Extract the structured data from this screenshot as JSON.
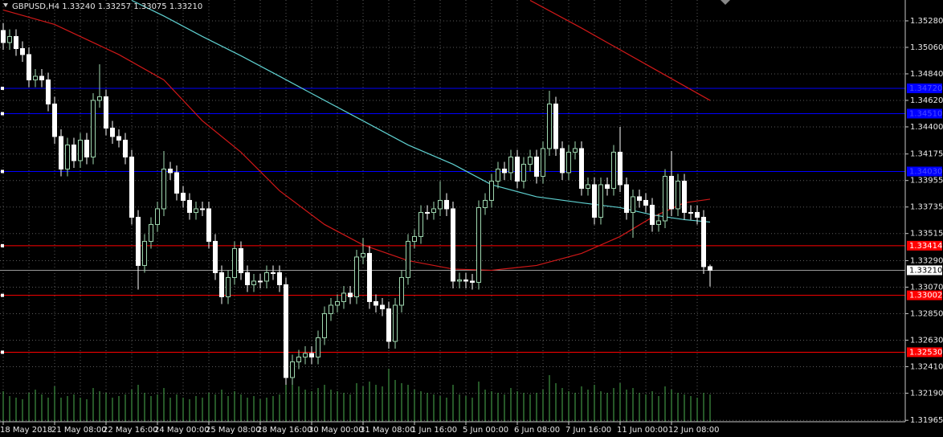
{
  "chart_data": {
    "type": "candlestick",
    "title": "GBPUSD,H4  1.33240 1.33257 1.33075 1.33210",
    "categories": [
      "18 May 2018",
      null,
      null,
      null,
      null,
      null,
      null,
      null,
      "21 May 08:00",
      null,
      null,
      null,
      null,
      null,
      null,
      null,
      "22 May 16:00",
      null,
      null,
      null,
      null,
      null,
      null,
      null,
      "24 May 00:00",
      null,
      null,
      null,
      null,
      null,
      null,
      null,
      "25 May 08:00",
      null,
      null,
      null,
      null,
      null,
      null,
      null,
      "28 May 16:00",
      null,
      null,
      null,
      null,
      null,
      null,
      null,
      "30 May 00:00",
      null,
      null,
      null,
      null,
      null,
      null,
      null,
      "31 May 08:00",
      null,
      null,
      null,
      null,
      null,
      null,
      null,
      "1 Jun 16:00",
      null,
      null,
      null,
      null,
      null,
      null,
      null,
      "5 Jun 00:00",
      null,
      null,
      null,
      null,
      null,
      null,
      null,
      "6 Jun 08:00",
      null,
      null,
      null,
      null,
      null,
      null,
      null,
      "7 Jun 16:00",
      null,
      null,
      null,
      null,
      null,
      null,
      null,
      "11 Jun 00:00",
      null,
      null,
      null,
      null,
      null,
      null,
      null,
      "12 Jun 08:00",
      null,
      null,
      null,
      null,
      null,
      null
    ],
    "open": [
      1.352,
      1.351,
      1.3515,
      1.3505,
      1.35,
      1.3479,
      1.3482,
      1.3479,
      1.3459,
      1.3432,
      1.3405,
      1.3425,
      1.3412,
      1.3429,
      1.3415,
      1.3462,
      1.3465,
      1.3439,
      1.3432,
      1.3429,
      1.3415,
      1.3365,
      1.3325,
      1.3345,
      1.3359,
      1.3372,
      1.3405,
      1.3402,
      1.3385,
      1.3379,
      1.3369,
      1.3372,
      1.3372,
      1.3345,
      1.3319,
      1.3299,
      1.3315,
      1.3339,
      1.3319,
      1.3309,
      1.3312,
      1.3312,
      1.3319,
      1.3319,
      1.3309,
      1.3232,
      1.3245,
      1.3249,
      1.3252,
      1.3249,
      1.3265,
      1.3285,
      1.3292,
      1.3295,
      1.3302,
      1.3299,
      1.3332,
      1.3335,
      1.3295,
      1.3292,
      1.3289,
      1.3262,
      1.3292,
      1.3315,
      1.3345,
      1.3349,
      1.3369,
      1.3369,
      1.3372,
      1.3379,
      1.3372,
      1.3312,
      1.3313,
      1.3312,
      1.3311,
      1.3373,
      1.3379,
      1.3395,
      1.3405,
      1.3402,
      1.3415,
      1.3395,
      1.3409,
      1.3415,
      1.3399,
      1.3422,
      1.3459,
      1.3422,
      1.3402,
      1.3419,
      1.3422,
      1.3389,
      1.3392,
      1.3365,
      1.3392,
      1.3389,
      1.3419,
      1.3392,
      1.3369,
      1.3382,
      1.3379,
      1.3375,
      1.3359,
      1.3362,
      1.3399,
      1.3372,
      1.3395,
      1.3369,
      1.3369,
      1.3365,
      1.3324
    ],
    "high": [
      1.3526,
      1.3521,
      1.3521,
      1.3511,
      1.3506,
      1.3488,
      1.3488,
      1.3485,
      1.3465,
      1.3438,
      1.3431,
      1.3431,
      1.3435,
      1.3435,
      1.3468,
      1.3492,
      1.3471,
      1.3445,
      1.3438,
      1.3435,
      1.3421,
      1.3371,
      1.3351,
      1.3365,
      1.3378,
      1.342,
      1.3411,
      1.3408,
      1.3391,
      1.3385,
      1.3378,
      1.3378,
      1.3378,
      1.3351,
      1.3325,
      1.3321,
      1.3345,
      1.3345,
      1.3325,
      1.3318,
      1.3318,
      1.3325,
      1.3325,
      1.3325,
      1.3315,
      1.3251,
      1.3255,
      1.3258,
      1.3258,
      1.3271,
      1.3291,
      1.3298,
      1.3301,
      1.3308,
      1.3308,
      1.3338,
      1.3348,
      1.3341,
      1.3301,
      1.3298,
      1.3295,
      1.3298,
      1.3321,
      1.3351,
      1.3355,
      1.3375,
      1.3375,
      1.3378,
      1.3395,
      1.3385,
      1.3378,
      1.3319,
      1.3319,
      1.3318,
      1.3379,
      1.3385,
      1.3401,
      1.3411,
      1.3411,
      1.3421,
      1.3421,
      1.3415,
      1.3421,
      1.3421,
      1.3428,
      1.347,
      1.3465,
      1.3428,
      1.3425,
      1.3428,
      1.3428,
      1.3398,
      1.3398,
      1.3398,
      1.3398,
      1.3425,
      1.344,
      1.3398,
      1.3388,
      1.3388,
      1.3385,
      1.3381,
      1.3368,
      1.3405,
      1.342,
      1.3401,
      1.3401,
      1.3375,
      1.3375,
      1.3371,
      1.33257
    ],
    "low": [
      1.3504,
      1.3504,
      1.3499,
      1.3494,
      1.3473,
      1.3473,
      1.3473,
      1.3453,
      1.3426,
      1.3399,
      1.3399,
      1.3406,
      1.3406,
      1.3409,
      1.3409,
      1.3456,
      1.3433,
      1.3426,
      1.3423,
      1.3409,
      1.3359,
      1.3305,
      1.3319,
      1.3339,
      1.3353,
      1.3366,
      1.3396,
      1.3379,
      1.3373,
      1.3363,
      1.3363,
      1.3366,
      1.3339,
      1.3313,
      1.3293,
      1.3293,
      1.3309,
      1.3313,
      1.3303,
      1.3303,
      1.3306,
      1.3306,
      1.3313,
      1.3303,
      1.3226,
      1.3226,
      1.3239,
      1.3243,
      1.3243,
      1.3243,
      1.3259,
      1.3279,
      1.3286,
      1.3289,
      1.3293,
      1.3293,
      1.3326,
      1.3289,
      1.3286,
      1.3283,
      1.3256,
      1.3256,
      1.3286,
      1.3309,
      1.3339,
      1.3343,
      1.3363,
      1.3363,
      1.3366,
      1.3366,
      1.3306,
      1.3306,
      1.3306,
      1.3305,
      1.3305,
      1.3367,
      1.3373,
      1.3389,
      1.3396,
      1.3396,
      1.3389,
      1.3389,
      1.3403,
      1.3393,
      1.3393,
      1.3416,
      1.3416,
      1.3396,
      1.3396,
      1.3413,
      1.3383,
      1.3383,
      1.3359,
      1.3359,
      1.3383,
      1.3383,
      1.3386,
      1.3363,
      1.3348,
      1.3373,
      1.3369,
      1.3353,
      1.3353,
      1.3356,
      1.3366,
      1.3366,
      1.3363,
      1.3363,
      1.3359,
      1.3318,
      1.33075
    ],
    "close": [
      1.351,
      1.3515,
      1.3505,
      1.35,
      1.3479,
      1.3482,
      1.3479,
      1.3459,
      1.3432,
      1.3405,
      1.3425,
      1.3412,
      1.3429,
      1.3415,
      1.3462,
      1.3465,
      1.3439,
      1.3432,
      1.3429,
      1.3415,
      1.3365,
      1.3325,
      1.3345,
      1.3359,
      1.3372,
      1.3405,
      1.3402,
      1.3385,
      1.3379,
      1.3369,
      1.3372,
      1.3372,
      1.3345,
      1.3319,
      1.3299,
      1.3315,
      1.3339,
      1.3319,
      1.3309,
      1.3312,
      1.3312,
      1.3319,
      1.3319,
      1.3309,
      1.3232,
      1.3245,
      1.3249,
      1.3252,
      1.3249,
      1.3265,
      1.3285,
      1.3292,
      1.3295,
      1.3302,
      1.3299,
      1.3332,
      1.3335,
      1.3295,
      1.3292,
      1.3289,
      1.3262,
      1.3292,
      1.3315,
      1.3345,
      1.3349,
      1.3369,
      1.3369,
      1.3372,
      1.3379,
      1.3372,
      1.3312,
      1.3313,
      1.3312,
      1.3311,
      1.3373,
      1.3379,
      1.3395,
      1.3405,
      1.3402,
      1.3415,
      1.3395,
      1.3409,
      1.3415,
      1.3399,
      1.3422,
      1.3459,
      1.3422,
      1.3402,
      1.3419,
      1.3422,
      1.3389,
      1.3392,
      1.3365,
      1.3392,
      1.3389,
      1.3419,
      1.3392,
      1.3369,
      1.3382,
      1.3379,
      1.3375,
      1.3359,
      1.3362,
      1.3399,
      1.3372,
      1.3395,
      1.3369,
      1.3369,
      1.3365,
      1.3324,
      1.3321
    ],
    "volume": [
      38,
      32,
      30,
      28,
      36,
      40,
      34,
      30,
      44,
      30,
      32,
      34,
      30,
      28,
      42,
      38,
      36,
      30,
      32,
      34,
      40,
      46,
      36,
      32,
      34,
      42,
      30,
      34,
      30,
      28,
      32,
      30,
      36,
      34,
      40,
      32,
      38,
      34,
      30,
      32,
      28,
      30,
      32,
      34,
      64,
      50,
      44,
      40,
      38,
      42,
      46,
      40,
      38,
      36,
      34,
      48,
      44,
      50,
      46,
      44,
      66,
      52,
      48,
      46,
      40,
      38,
      36,
      34,
      32,
      30,
      46,
      34,
      32,
      30,
      50,
      40,
      38,
      36,
      34,
      42,
      38,
      36,
      34,
      36,
      40,
      58,
      48,
      42,
      38,
      36,
      44,
      40,
      46,
      38,
      36,
      42,
      48,
      40,
      42,
      36,
      34,
      38,
      32,
      44,
      40,
      36,
      34,
      32,
      30,
      36,
      34
    ],
    "volume_color": "#4caf50",
    "bull_color": "#000000",
    "bear_color": "#ffffff",
    "wick_color": "#9fd8b0",
    "series": [
      {
        "color": "#d01818",
        "x": [
          0,
          8,
          18,
          25,
          31,
          37,
          43,
          50,
          56,
          63,
          70,
          76,
          83,
          90,
          96,
          101,
          106,
          110
        ],
        "values": [
          1.3537,
          1.3525,
          1.35,
          1.3479,
          1.3445,
          1.3419,
          1.3387,
          1.3359,
          1.3342,
          1.3329,
          1.3322,
          1.3321,
          1.3325,
          1.3335,
          1.3349,
          1.3365,
          1.3377,
          1.338
        ]
      },
      {
        "color": "#5fd0d0",
        "x": [
          20,
          25,
          31,
          37,
          43,
          50,
          56,
          63,
          70,
          76,
          83,
          90,
          96,
          101,
          106,
          110
        ],
        "values": [
          1.3545,
          1.3532,
          1.3515,
          1.3499,
          1.3482,
          1.3462,
          1.3445,
          1.3425,
          1.3409,
          1.3392,
          1.3382,
          1.3377,
          1.3373,
          1.3367,
          1.3363,
          1.3361
        ]
      },
      {
        "color": "#d01818",
        "x": [
          82,
          90,
          100,
          110
        ],
        "values": [
          1.3545,
          1.3522,
          1.3492,
          1.3462
        ]
      }
    ],
    "levels": [
      {
        "color": "#0000ff",
        "value": 1.3472,
        "label": "1.34720"
      },
      {
        "color": "#0000ff",
        "value": 1.3451,
        "label": "1.34510"
      },
      {
        "color": "#0000ff",
        "value": 1.3403,
        "label": "1.34030"
      },
      {
        "color": "#ff0000",
        "value": 1.33414,
        "label": "1.33414"
      },
      {
        "color": "#ff0000",
        "value": 1.33002,
        "label": "1.33002"
      },
      {
        "color": "#ff0000",
        "value": 1.3253,
        "label": "1.32530"
      }
    ],
    "price": {
      "value": 1.3321,
      "label": "1.33210"
    },
    "ylim": [
      1.31953,
      1.35453
    ],
    "yticks": [
      {
        "value": 1.3528,
        "label": "1.35280"
      },
      {
        "value": 1.3506,
        "label": "1.35060"
      },
      {
        "value": 1.3484,
        "label": "1.34840"
      },
      {
        "value": 1.3462,
        "label": "1.34620"
      },
      {
        "value": 1.344,
        "label": "1.34400"
      },
      {
        "value": 1.34175,
        "label": "1.34175"
      },
      {
        "value": 1.33955,
        "label": "1.33955"
      },
      {
        "value": 1.33735,
        "label": "1.33735"
      },
      {
        "value": 1.33515,
        "label": "1.33515"
      },
      {
        "value": 1.3329,
        "label": "1.33290"
      },
      {
        "value": 1.3307,
        "label": "1.33070"
      },
      {
        "value": 1.3285,
        "label": "1.32850"
      },
      {
        "value": 1.3263,
        "label": "1.32630"
      },
      {
        "value": 1.3241,
        "label": "1.32410"
      },
      {
        "value": 1.3219,
        "label": "1.32190"
      },
      {
        "value": 1.31965,
        "label": "1.31965"
      }
    ],
    "grid": true
  }
}
